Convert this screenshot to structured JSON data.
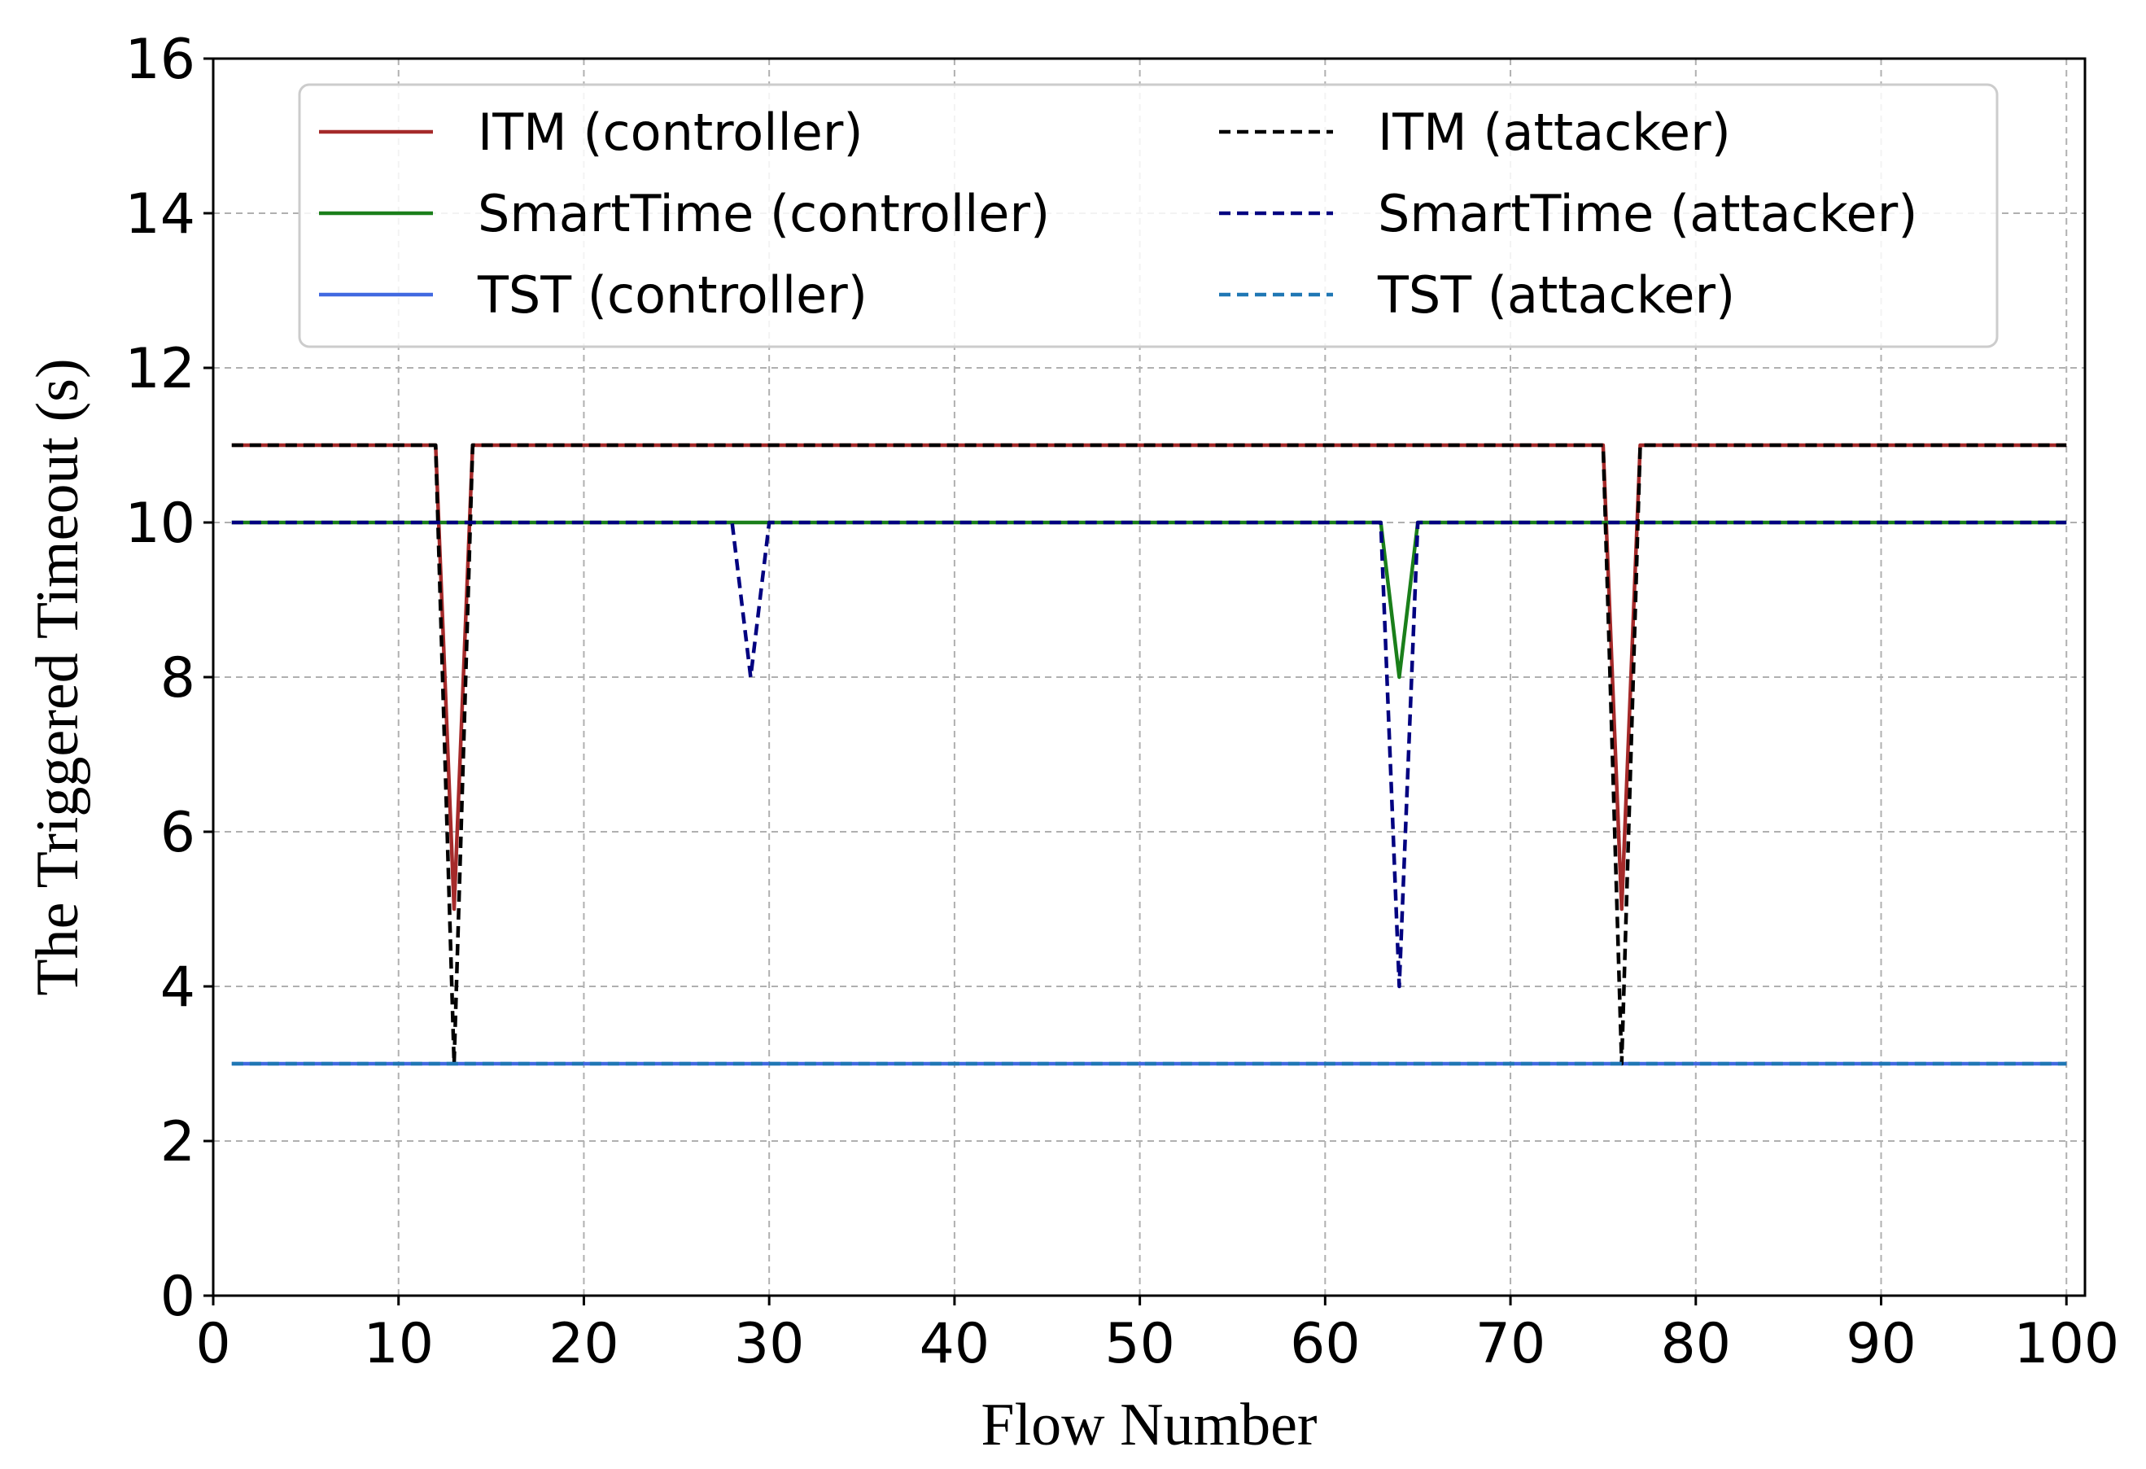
{
  "chart_data": {
    "type": "line",
    "title": "",
    "xlabel": "Flow Number",
    "ylabel": "The Triggered Timeout (s)",
    "xlim": [
      0,
      101
    ],
    "ylim": [
      0,
      16
    ],
    "xticks": [
      0,
      10,
      20,
      30,
      40,
      50,
      60,
      70,
      80,
      90,
      100
    ],
    "yticks": [
      0,
      2,
      4,
      6,
      8,
      10,
      12,
      14,
      16
    ],
    "grid": true,
    "legend_position": "top",
    "series": [
      {
        "name": "ITM (controller)",
        "color": "#a52a2a",
        "style": "solid",
        "points": [
          [
            1,
            11
          ],
          [
            12,
            11
          ],
          [
            13,
            5
          ],
          [
            14,
            11
          ],
          [
            75,
            11
          ],
          [
            76,
            5
          ],
          [
            77,
            11
          ],
          [
            100,
            11
          ]
        ]
      },
      {
        "name": "SmartTime (controller)",
        "color": "#1a7f1a",
        "style": "solid",
        "points": [
          [
            1,
            10
          ],
          [
            63,
            10
          ],
          [
            64,
            8
          ],
          [
            65,
            10
          ],
          [
            100,
            10
          ]
        ]
      },
      {
        "name": "TST (controller)",
        "color": "#4169e1",
        "style": "solid",
        "points": [
          [
            1,
            3
          ],
          [
            100,
            3
          ]
        ]
      },
      {
        "name": "ITM (attacker)",
        "color": "#000000",
        "style": "dashed",
        "points": [
          [
            1,
            11
          ],
          [
            12,
            11
          ],
          [
            13,
            3
          ],
          [
            14,
            11
          ],
          [
            75,
            11
          ],
          [
            76,
            3
          ],
          [
            77,
            11
          ],
          [
            100,
            11
          ]
        ]
      },
      {
        "name": "SmartTime (attacker)",
        "color": "#000080",
        "style": "dashed",
        "points": [
          [
            1,
            10
          ],
          [
            28,
            10
          ],
          [
            29,
            8
          ],
          [
            30,
            10
          ],
          [
            63,
            10
          ],
          [
            64,
            4
          ],
          [
            65,
            10
          ],
          [
            100,
            10
          ]
        ]
      },
      {
        "name": "TST (attacker)",
        "color": "#1f77b4",
        "style": "dashed",
        "points": [
          [
            1,
            3
          ],
          [
            100,
            3
          ]
        ]
      }
    ]
  }
}
